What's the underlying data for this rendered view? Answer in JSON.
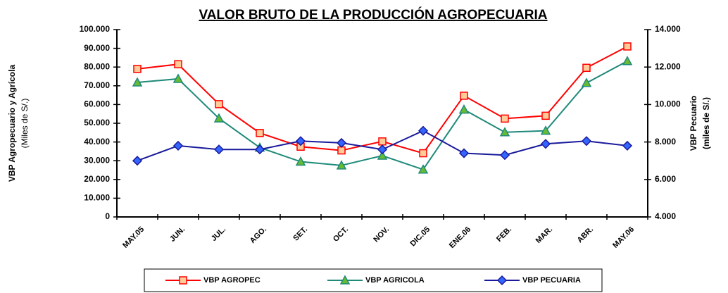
{
  "chart_data": {
    "type": "line",
    "title": "VALOR BRUTO DE LA PRODUCCIÓN AGROPECUARIA",
    "y_label": "VBP Agropecuario y Agrícola",
    "y_sublabel": "(Miles de S/.)",
    "y2_label": "VBP Pecuario",
    "y2_sublabel": "(miles de S/.)",
    "categories": [
      "MAY.05",
      "JUN.",
      "JUL.",
      "AGO.",
      "SET.",
      "OCT.",
      "NOV.",
      "DIC.05",
      "ENE.06",
      "FEB.",
      "MAR.",
      "ABR.",
      "MAY.06"
    ],
    "ylim": [
      0,
      100000
    ],
    "yticks": [
      0,
      {
        "value": 10000,
        "label": "10.000"
      },
      {
        "value": 20000,
        "label": "20.000"
      },
      {
        "value": 30000,
        "label": "30.000"
      },
      {
        "value": 40000,
        "label": "40.000"
      },
      {
        "value": 50000,
        "label": "50.000"
      },
      {
        "value": 60000,
        "label": "60.000"
      },
      {
        "value": 70000,
        "label": "70.000"
      },
      {
        "value": 80000,
        "label": "80.000"
      },
      {
        "value": 90000,
        "label": "90.000"
      },
      {
        "value": 100000,
        "label": "100.000"
      }
    ],
    "y2lim": [
      4000,
      14000
    ],
    "y2ticks": [
      {
        "value": 4000,
        "label": "4.000"
      },
      {
        "value": 6000,
        "label": "6.000"
      },
      {
        "value": 8000,
        "label": "8.000"
      },
      {
        "value": 10000,
        "label": "10.000"
      },
      {
        "value": 12000,
        "label": "12.000"
      },
      {
        "value": 14000,
        "label": "14.000"
      }
    ],
    "series": [
      {
        "name": "VBP AGROPEC",
        "color": "#ff0000",
        "marker": "square",
        "marker_fill": "#ffcc99",
        "values": [
          79000,
          81500,
          60200,
          44800,
          37500,
          35500,
          40300,
          34000,
          64700,
          52500,
          54000,
          79600,
          91000
        ]
      },
      {
        "name": "VBP AGRICOLA",
        "color": "#1f8a7a",
        "marker": "triangle",
        "marker_fill": "#66bb33",
        "values": [
          71800,
          73700,
          52600,
          37000,
          29500,
          27500,
          32700,
          25300,
          57300,
          45200,
          46000,
          71500,
          83200
        ]
      },
      {
        "name": "VBP PECUARIA",
        "color": "#1a1a9c",
        "marker": "diamond",
        "marker_fill": "#3366ff",
        "axis": "y2",
        "values": [
          7000,
          7800,
          7600,
          7600,
          8050,
          7950,
          7600,
          8600,
          7400,
          7300,
          7900,
          8050,
          7800
        ]
      }
    ]
  }
}
